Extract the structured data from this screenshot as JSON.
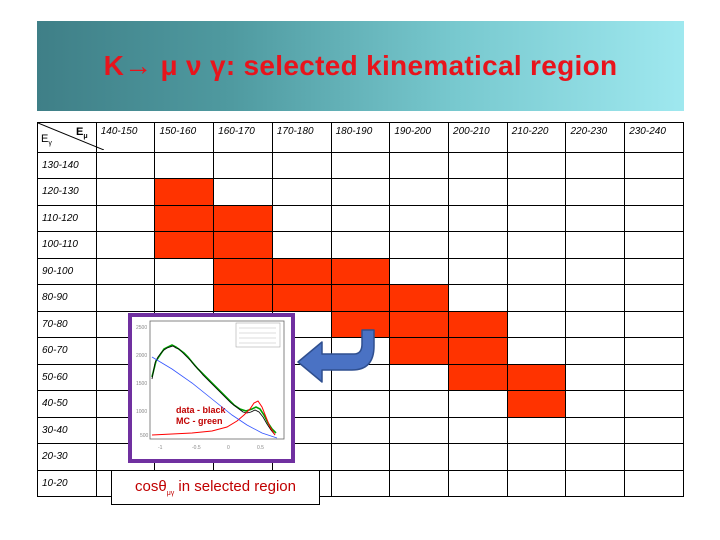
{
  "title": "K→ μ ν γ: selected kinematical region",
  "corner": {
    "e_gamma": "E",
    "e_gamma_sub": "γ",
    "e_mu": "E",
    "e_mu_sub": "μ"
  },
  "columns": [
    "140-150",
    "150-160",
    "160-170",
    "170-180",
    "180-190",
    "190-200",
    "200-210",
    "210-220",
    "220-230",
    "230-240"
  ],
  "rows": [
    {
      "label": "130-140",
      "filled": []
    },
    {
      "label": "120-130",
      "filled": [
        1
      ]
    },
    {
      "label": "110-120",
      "filled": [
        1,
        2
      ]
    },
    {
      "label": "100-110",
      "filled": [
        1,
        2
      ]
    },
    {
      "label": "90-100",
      "filled": [
        2,
        3,
        4
      ]
    },
    {
      "label": "80-90",
      "filled": [
        2,
        3,
        4,
        5
      ]
    },
    {
      "label": "70-80",
      "filled": [
        4,
        5,
        6
      ]
    },
    {
      "label": "60-70",
      "filled": [
        5,
        6
      ]
    },
    {
      "label": "50-60",
      "filled": [
        6,
        7
      ]
    },
    {
      "label": "40-50",
      "filled": [
        7
      ]
    },
    {
      "label": "30-40",
      "filled": []
    },
    {
      "label": "20-30",
      "filled": []
    },
    {
      "label": "10-20",
      "filled": []
    }
  ],
  "inset": {
    "legend_line1": "data - black",
    "legend_line2": "MC - green",
    "caption_main": "cosθ",
    "caption_sub": "μγ",
    "caption_rest": " in selected region",
    "colors": {
      "frame": "#7030a0",
      "data": "#000000",
      "mc": "#00a000",
      "red": "#ff0000",
      "blue": "#3355ff"
    }
  },
  "colors": {
    "filled_cell": "#ff3300",
    "title_text": "#e8141c",
    "arrow": "#4a72c4"
  }
}
